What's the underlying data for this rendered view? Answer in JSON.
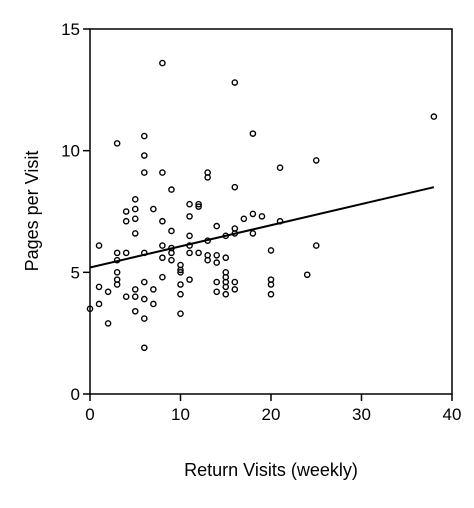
{
  "chart_data": {
    "type": "scatter",
    "xlabel": "Return Visits (weekly)",
    "ylabel": "Pages per Visit",
    "xlim": [
      0,
      40
    ],
    "ylim": [
      0,
      15
    ],
    "x_ticks": [
      0,
      10,
      20,
      30,
      40
    ],
    "y_ticks": [
      0,
      5,
      10,
      15
    ],
    "x_tick_labels": [
      "0",
      "10",
      "20",
      "30",
      "40"
    ],
    "y_tick_labels": [
      "0",
      "5",
      "10",
      "15"
    ],
    "grid": false,
    "legend": "none",
    "marker": "open-circle",
    "trend_line": {
      "type": "linear",
      "x": [
        0,
        38
      ],
      "y": [
        5.2,
        8.5
      ]
    },
    "points": [
      [
        0,
        3.5
      ],
      [
        1,
        6.1
      ],
      [
        1,
        4.4
      ],
      [
        1,
        3.7
      ],
      [
        2,
        4.2
      ],
      [
        2,
        2.9
      ],
      [
        3,
        10.3
      ],
      [
        3,
        5.8
      ],
      [
        3,
        5.5
      ],
      [
        3,
        5.0
      ],
      [
        3,
        4.7
      ],
      [
        3,
        4.5
      ],
      [
        4,
        7.5
      ],
      [
        4,
        7.1
      ],
      [
        4,
        5.8
      ],
      [
        4,
        4.0
      ],
      [
        5,
        8.0
      ],
      [
        5,
        7.6
      ],
      [
        5,
        7.2
      ],
      [
        5,
        6.6
      ],
      [
        5,
        4.3
      ],
      [
        5,
        4.0
      ],
      [
        5,
        3.4
      ],
      [
        6,
        10.6
      ],
      [
        6,
        9.8
      ],
      [
        6,
        9.1
      ],
      [
        6,
        5.8
      ],
      [
        6,
        4.6
      ],
      [
        6,
        3.9
      ],
      [
        6,
        3.1
      ],
      [
        6,
        1.9
      ],
      [
        7,
        7.6
      ],
      [
        7,
        4.3
      ],
      [
        7,
        3.7
      ],
      [
        8,
        13.6
      ],
      [
        8,
        9.1
      ],
      [
        8,
        7.1
      ],
      [
        8,
        6.1
      ],
      [
        8,
        5.6
      ],
      [
        8,
        4.8
      ],
      [
        9,
        8.4
      ],
      [
        9,
        6.7
      ],
      [
        9,
        6.0
      ],
      [
        9,
        5.8
      ],
      [
        9,
        5.5
      ],
      [
        10,
        5.3
      ],
      [
        10,
        5.1
      ],
      [
        10,
        5.0
      ],
      [
        10,
        4.5
      ],
      [
        10,
        4.1
      ],
      [
        10,
        3.3
      ],
      [
        11,
        7.8
      ],
      [
        11,
        7.3
      ],
      [
        11,
        6.5
      ],
      [
        11,
        6.1
      ],
      [
        11,
        5.8
      ],
      [
        11,
        4.7
      ],
      [
        12,
        7.8
      ],
      [
        12,
        7.7
      ],
      [
        12,
        5.8
      ],
      [
        13,
        9.1
      ],
      [
        13,
        8.9
      ],
      [
        13,
        6.3
      ],
      [
        13,
        5.7
      ],
      [
        13,
        5.5
      ],
      [
        14,
        6.9
      ],
      [
        14,
        5.7
      ],
      [
        14,
        5.4
      ],
      [
        14,
        4.6
      ],
      [
        14,
        4.2
      ],
      [
        15,
        6.5
      ],
      [
        15,
        5.6
      ],
      [
        15,
        5.0
      ],
      [
        15,
        4.8
      ],
      [
        15,
        4.6
      ],
      [
        15,
        4.4
      ],
      [
        15,
        4.1
      ],
      [
        16,
        12.8
      ],
      [
        16,
        8.5
      ],
      [
        16,
        6.8
      ],
      [
        16,
        6.6
      ],
      [
        16,
        4.6
      ],
      [
        16,
        4.3
      ],
      [
        17,
        7.2
      ],
      [
        18,
        10.7
      ],
      [
        18,
        7.4
      ],
      [
        18,
        6.6
      ],
      [
        19,
        7.3
      ],
      [
        20,
        5.9
      ],
      [
        20,
        4.7
      ],
      [
        20,
        4.5
      ],
      [
        20,
        4.1
      ],
      [
        21,
        9.3
      ],
      [
        21,
        7.1
      ],
      [
        24,
        4.9
      ],
      [
        25,
        9.6
      ],
      [
        25,
        6.1
      ],
      [
        38,
        11.4
      ]
    ]
  }
}
